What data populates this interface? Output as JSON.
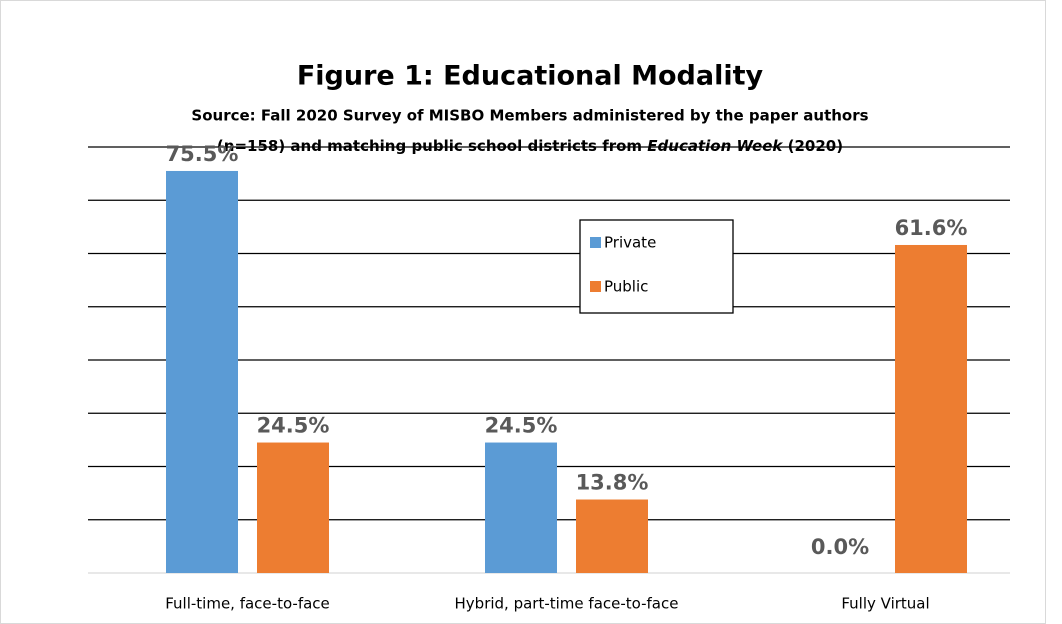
{
  "chart_data": {
    "type": "bar",
    "title": "Figure 1: Educational Modality",
    "subtitle": {
      "line1": "Source: Fall 2020 Survey of MISBO Members administered by the paper authors",
      "line2": [
        "(n=158) and matching public school districts from ",
        "Education Week",
        " (2020)"
      ]
    },
    "categories": [
      "Full-time, face-to-face",
      "Hybrid, part-time face-to-face",
      "Fully Virtual"
    ],
    "series": [
      {
        "name": "Private",
        "color": "#5b9bd5",
        "values": [
          75.5,
          24.5,
          0.0
        ],
        "value_labels": [
          "75.5%",
          "24.5%",
          "0.0%"
        ]
      },
      {
        "name": "Public",
        "color": "#ed7d31",
        "values": [
          24.5,
          13.8,
          61.6
        ],
        "value_labels": [
          "24.5%",
          "13.8%",
          "61.6%"
        ]
      }
    ],
    "ylim": [
      0,
      80
    ],
    "yticks": [
      0,
      10,
      20,
      30,
      40,
      50,
      60,
      70,
      80
    ],
    "grid": true,
    "legend": "center"
  }
}
